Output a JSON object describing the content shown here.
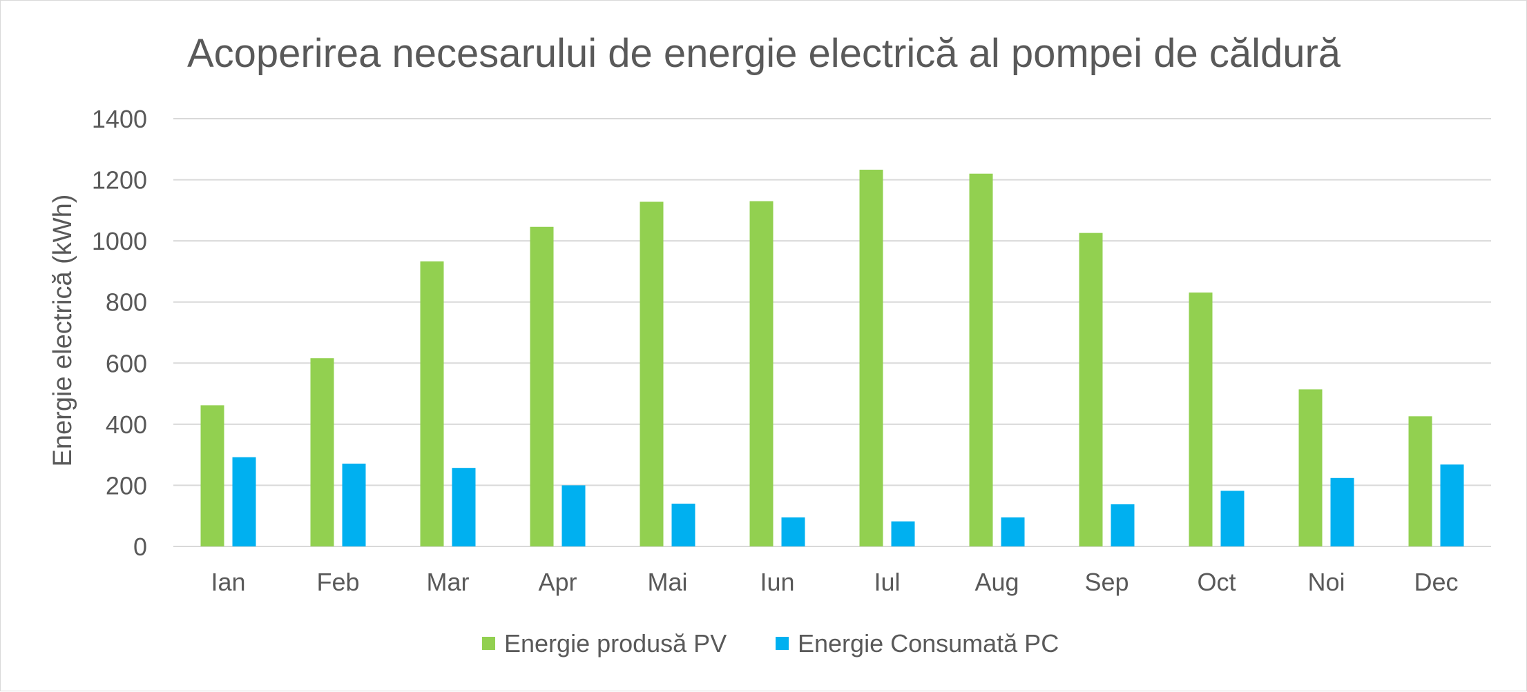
{
  "chart_data": {
    "type": "bar",
    "title": "Acoperirea necesarului de energie electrică al pompei de căldură",
    "ylabel": "Energie electrică (kWh)",
    "xlabel": "",
    "ylim": [
      0,
      1400
    ],
    "yticks": [
      0,
      200,
      400,
      600,
      800,
      1000,
      1200,
      1400
    ],
    "categories": [
      "Ian",
      "Feb",
      "Mar",
      "Apr",
      "Mai",
      "Iun",
      "Iul",
      "Aug",
      "Sep",
      "Oct",
      "Noi",
      "Dec"
    ],
    "series": [
      {
        "name": "Energie produsă PV",
        "color": "#92d050",
        "values": [
          462,
          616,
          933,
          1046,
          1128,
          1130,
          1233,
          1220,
          1026,
          831,
          514,
          426
        ]
      },
      {
        "name": "Energie Consumată PC",
        "color": "#00b0f0",
        "values": [
          292,
          271,
          257,
          200,
          140,
          95,
          82,
          95,
          138,
          182,
          224,
          268
        ]
      }
    ],
    "grid": true,
    "legend_position": "bottom"
  }
}
